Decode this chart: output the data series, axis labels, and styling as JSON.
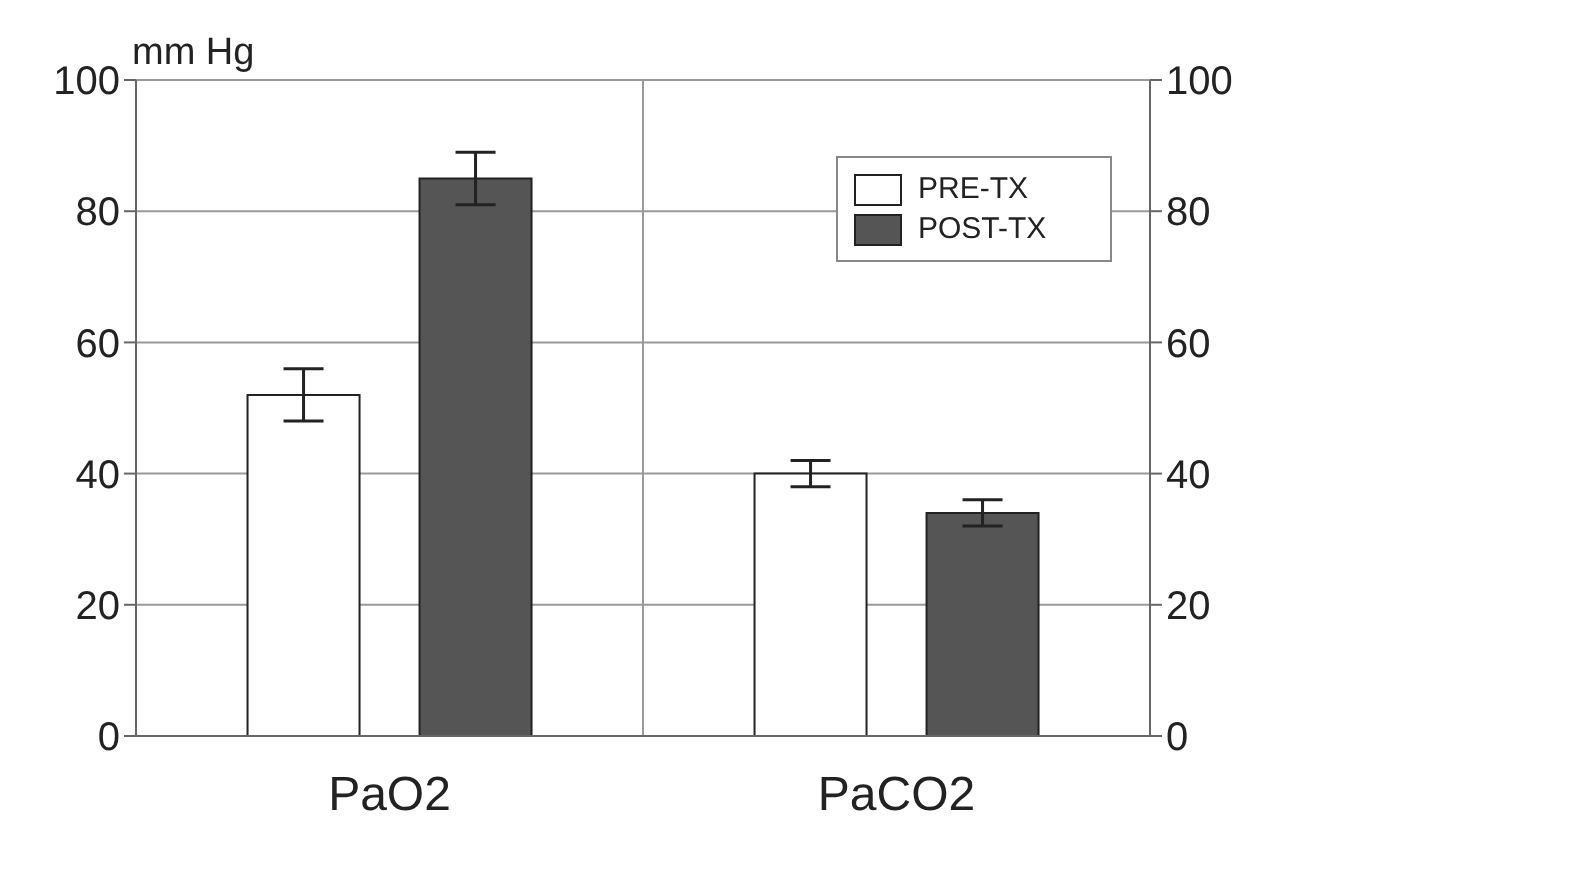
{
  "chart_data": {
    "type": "bar",
    "ylabel": "mm Hg",
    "categories": [
      "PaO2",
      "PaCO2"
    ],
    "series": [
      {
        "name": "PRE-TX",
        "color": "#ffffff",
        "values": [
          52,
          40
        ],
        "errors": [
          4,
          2
        ]
      },
      {
        "name": "POST-TX",
        "color": "#555555",
        "values": [
          85,
          34
        ],
        "errors": [
          4,
          2
        ]
      }
    ],
    "ylim": [
      0,
      100
    ],
    "yticks": [
      0,
      20,
      40,
      60,
      80,
      100
    ],
    "y2lim": [
      0,
      100
    ],
    "y2ticks": [
      0,
      20,
      40,
      60,
      80,
      100
    ],
    "grid": true,
    "legend": "top right"
  }
}
